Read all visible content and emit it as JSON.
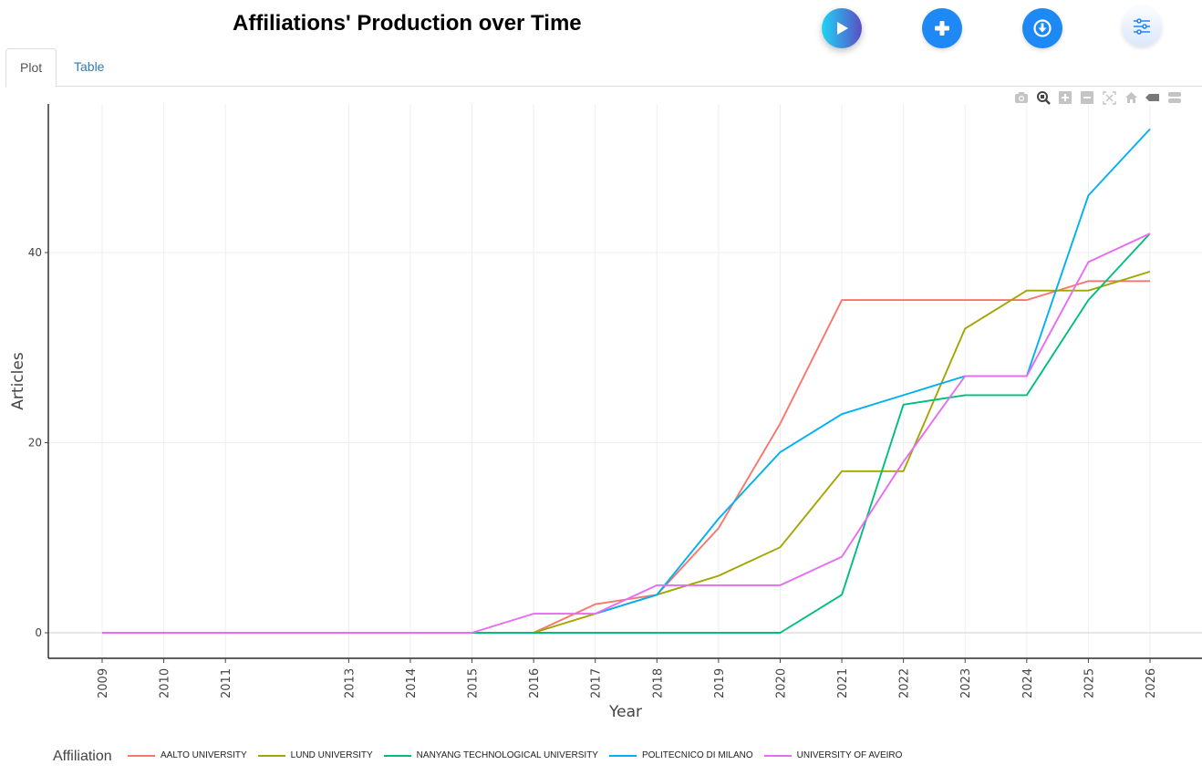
{
  "header": {
    "title": "Affiliations' Production over Time",
    "buttons": [
      {
        "name": "run-button",
        "icon": "play-icon"
      },
      {
        "name": "add-button",
        "icon": "plus-icon"
      },
      {
        "name": "download-button",
        "icon": "download-icon"
      },
      {
        "name": "options-button",
        "icon": "sliders-icon"
      }
    ]
  },
  "tabs": [
    {
      "label": "Plot",
      "active": true
    },
    {
      "label": "Table",
      "active": false
    }
  ],
  "modebar": [
    "camera-icon",
    "zoom-icon",
    "zoom-in-icon",
    "zoom-out-icon",
    "autoscale-icon",
    "home-icon",
    "spike-lines-icon",
    "compare-hover-icon"
  ],
  "colors": {
    "aalto": "#F8766D",
    "lund": "#A3A500",
    "nanyang": "#00BF7D",
    "polimi": "#00B0F6",
    "aveiro": "#E76BF3",
    "accent": "#1E88F5"
  },
  "chart_data": {
    "type": "line",
    "title": "Affiliations' Production over Time",
    "xlabel": "Year",
    "ylabel": "Articles",
    "x_ticks": [
      "2009",
      "2010",
      "2011",
      "2013",
      "2014",
      "2015",
      "2016",
      "2017",
      "2018",
      "2019",
      "2020",
      "2021",
      "2022",
      "2023",
      "2024",
      "2025",
      "2026"
    ],
    "y_ticks": [
      "0",
      "20",
      "40"
    ],
    "xlim": [
      2008.15,
      2026.85
    ],
    "ylim": [
      -2.7,
      55
    ],
    "grid": true,
    "legend_title": "Affiliation",
    "legend_position": "bottom",
    "series": [
      {
        "name": "AALTO UNIVERSITY",
        "color": "#F8766D",
        "x": [
          2016,
          2017,
          2018,
          2019,
          2020,
          2021,
          2022,
          2023,
          2024,
          2025,
          2026
        ],
        "y": [
          0,
          3,
          4,
          11,
          22,
          35,
          35,
          35,
          35,
          37,
          37
        ]
      },
      {
        "name": "LUND UNIVERSITY",
        "color": "#A3A500",
        "x": [
          2016,
          2017,
          2018,
          2019,
          2020,
          2021,
          2022,
          2023,
          2024,
          2025,
          2026
        ],
        "y": [
          0,
          2,
          4,
          6,
          9,
          17,
          17,
          32,
          36,
          36,
          38
        ]
      },
      {
        "name": "NANYANG TECHNOLOGICAL UNIVERSITY",
        "color": "#00BF7D",
        "x": [
          2015,
          2016,
          2017,
          2018,
          2019,
          2020,
          2021,
          2022,
          2023,
          2024,
          2025,
          2026
        ],
        "y": [
          0,
          0,
          0,
          0,
          0,
          0,
          4,
          24,
          25,
          25,
          35,
          42
        ]
      },
      {
        "name": "POLITECNICO DI MILANO",
        "color": "#00B0F6",
        "x": [
          2017,
          2018,
          2019,
          2020,
          2021,
          2022,
          2023,
          2024,
          2025,
          2026
        ],
        "y": [
          2,
          4,
          12,
          19,
          23,
          25,
          27,
          27,
          46,
          53
        ]
      },
      {
        "name": "UNIVERSITY OF AVEIRO",
        "color": "#E76BF3",
        "x": [
          2009,
          2010,
          2011,
          2012,
          2013,
          2014,
          2015,
          2016,
          2017,
          2018,
          2019,
          2020,
          2021,
          2022,
          2023,
          2024,
          2025,
          2026
        ],
        "y": [
          0,
          0,
          0,
          0,
          0,
          0,
          0,
          2,
          2,
          5,
          5,
          5,
          8,
          18,
          27,
          27,
          39,
          42
        ]
      }
    ]
  }
}
